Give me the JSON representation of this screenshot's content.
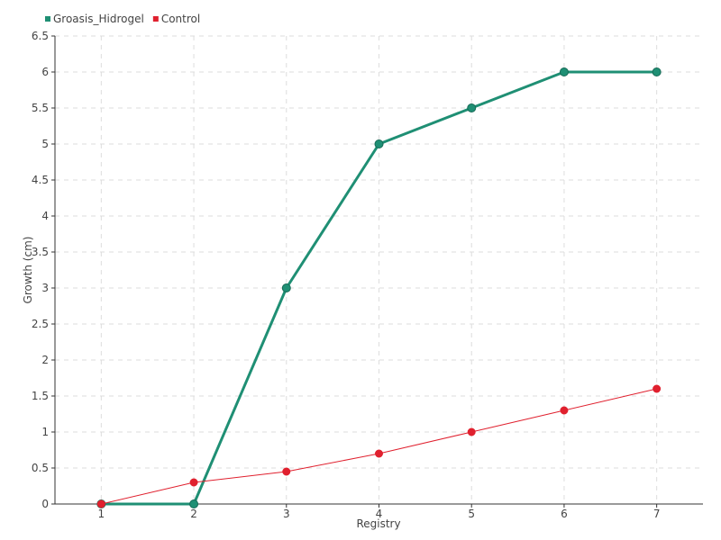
{
  "chart_data": {
    "type": "line",
    "title": "",
    "xlabel": "Registry",
    "ylabel": "Growth (cm)",
    "categories": [
      "1",
      "2",
      "3",
      "4",
      "5",
      "6",
      "7"
    ],
    "x": [
      1,
      2,
      3,
      4,
      5,
      6,
      7
    ],
    "ylim": [
      0,
      6.5
    ],
    "yticks": [
      0,
      0.5,
      1,
      1.5,
      2,
      2.5,
      3,
      3.5,
      4,
      4.5,
      5,
      5.5,
      6,
      6.5
    ],
    "ytick_labels": [
      "0",
      "0.5",
      "1",
      "1.5",
      "2",
      "2.5",
      "3",
      "3.5",
      "4",
      "4.5",
      "5",
      "5.5",
      "6",
      "6.5"
    ],
    "grid": true,
    "legend_position": "top-left",
    "series": [
      {
        "name": "Groasis_Hidrogel",
        "color": "#1f8f74",
        "values": [
          0,
          0,
          3,
          5,
          5.5,
          6,
          6
        ]
      },
      {
        "name": "Control",
        "color": "#e0202e",
        "values": [
          0,
          0.3,
          0.45,
          0.7,
          1,
          1.3,
          1.6
        ]
      }
    ]
  }
}
